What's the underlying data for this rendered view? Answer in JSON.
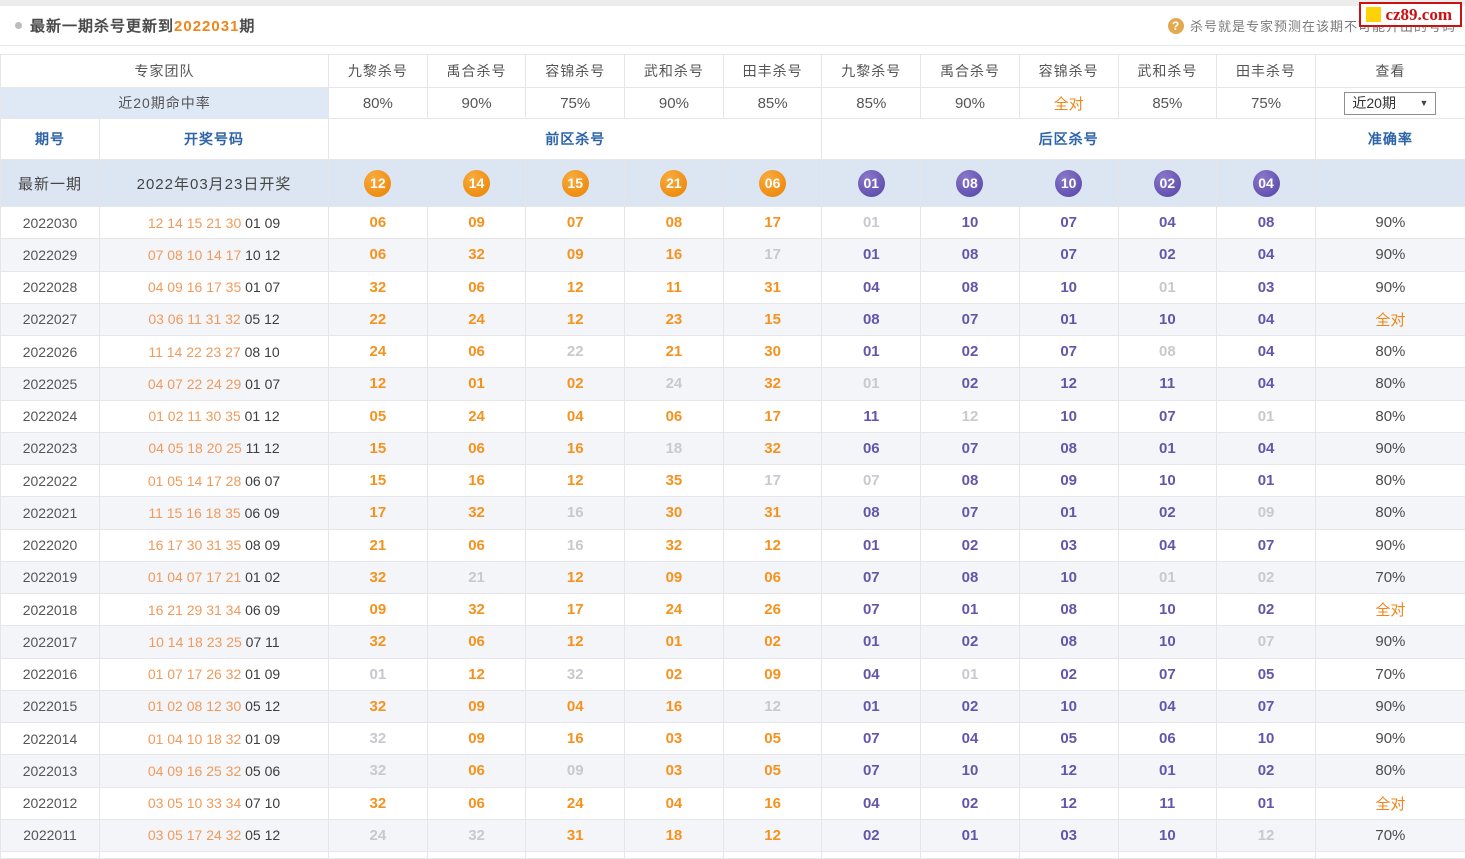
{
  "colors": {
    "accent_orange": "#f08519",
    "kill_hit_front": "#f5921e",
    "kill_hit_back": "#6156ab",
    "kill_miss": "#c9c9cd",
    "circle_front": "#ee8c10",
    "circle_back": "#6150ae",
    "header_blue": "#2e64a8",
    "latest_row_bg": "#dce6f2",
    "alt_row_bg": "#f4f5f9",
    "hitrate_cell_bg": "#dfe9f6",
    "draw_front": "#f19a5b",
    "logo_red": "#cc1111",
    "logo_gold": "#ffd207",
    "tip_icon": "#e3a94f"
  },
  "page": {
    "title_prefix": "最新一期杀号更新到",
    "title_period": "2022031",
    "title_suffix": "期",
    "tip": "杀号就是专家预测在该期不可能开出的号码",
    "logo_text": "cz89.com"
  },
  "header": {
    "expert_team_label": "专家团队",
    "expert_cols": [
      "九黎杀号",
      "禹合杀号",
      "容锦杀号",
      "武和杀号",
      "田丰杀号",
      "九黎杀号",
      "禹合杀号",
      "容锦杀号",
      "武和杀号",
      "田丰杀号"
    ],
    "view_label": "查看",
    "hit_rate_label": "近20期命中率",
    "hit_rates": [
      "80%",
      "90%",
      "75%",
      "90%",
      "85%",
      "85%",
      "90%",
      "全对",
      "85%",
      "75%"
    ],
    "dropdown_value": "近20期",
    "dropdown_arrow": "▼",
    "period_label": "期号",
    "draw_label": "开奖号码",
    "front_label": "前区杀号",
    "back_label": "后区杀号",
    "accuracy_label": "准确率"
  },
  "latest": {
    "period_label": "最新一期",
    "draw_text": "2022年03月23日开奖",
    "front": [
      "12",
      "14",
      "15",
      "21",
      "06"
    ],
    "back": [
      "01",
      "08",
      "10",
      "02",
      "04"
    ]
  },
  "rows": [
    {
      "period": "2022030",
      "front_draw": "12 14 15 21 30",
      "back_draw": "01 09",
      "front": [
        {
          "v": "06",
          "hit": true
        },
        {
          "v": "09",
          "hit": true
        },
        {
          "v": "07",
          "hit": true
        },
        {
          "v": "08",
          "hit": true
        },
        {
          "v": "17",
          "hit": true
        }
      ],
      "back": [
        {
          "v": "01",
          "hit": false
        },
        {
          "v": "10",
          "hit": true
        },
        {
          "v": "07",
          "hit": true
        },
        {
          "v": "04",
          "hit": true
        },
        {
          "v": "08",
          "hit": true
        }
      ],
      "rate": "90%"
    },
    {
      "period": "2022029",
      "front_draw": "07 08 10 14 17",
      "back_draw": "10 12",
      "front": [
        {
          "v": "06",
          "hit": true
        },
        {
          "v": "32",
          "hit": true
        },
        {
          "v": "09",
          "hit": true
        },
        {
          "v": "16",
          "hit": true
        },
        {
          "v": "17",
          "hit": false
        }
      ],
      "back": [
        {
          "v": "01",
          "hit": true
        },
        {
          "v": "08",
          "hit": true
        },
        {
          "v": "07",
          "hit": true
        },
        {
          "v": "02",
          "hit": true
        },
        {
          "v": "04",
          "hit": true
        }
      ],
      "rate": "90%"
    },
    {
      "period": "2022028",
      "front_draw": "04 09 16 17 35",
      "back_draw": "01 07",
      "front": [
        {
          "v": "32",
          "hit": true
        },
        {
          "v": "06",
          "hit": true
        },
        {
          "v": "12",
          "hit": true
        },
        {
          "v": "11",
          "hit": true
        },
        {
          "v": "31",
          "hit": true
        }
      ],
      "back": [
        {
          "v": "04",
          "hit": true
        },
        {
          "v": "08",
          "hit": true
        },
        {
          "v": "10",
          "hit": true
        },
        {
          "v": "01",
          "hit": false
        },
        {
          "v": "03",
          "hit": true
        }
      ],
      "rate": "90%"
    },
    {
      "period": "2022027",
      "front_draw": "03 06 11 31 32",
      "back_draw": "05 12",
      "front": [
        {
          "v": "22",
          "hit": true
        },
        {
          "v": "24",
          "hit": true
        },
        {
          "v": "12",
          "hit": true
        },
        {
          "v": "23",
          "hit": true
        },
        {
          "v": "15",
          "hit": true
        }
      ],
      "back": [
        {
          "v": "08",
          "hit": true
        },
        {
          "v": "07",
          "hit": true
        },
        {
          "v": "01",
          "hit": true
        },
        {
          "v": "10",
          "hit": true
        },
        {
          "v": "04",
          "hit": true
        }
      ],
      "rate": "全对"
    },
    {
      "period": "2022026",
      "front_draw": "11 14 22 23 27",
      "back_draw": "08 10",
      "front": [
        {
          "v": "24",
          "hit": true
        },
        {
          "v": "06",
          "hit": true
        },
        {
          "v": "22",
          "hit": false
        },
        {
          "v": "21",
          "hit": true
        },
        {
          "v": "30",
          "hit": true
        }
      ],
      "back": [
        {
          "v": "01",
          "hit": true
        },
        {
          "v": "02",
          "hit": true
        },
        {
          "v": "07",
          "hit": true
        },
        {
          "v": "08",
          "hit": false
        },
        {
          "v": "04",
          "hit": true
        }
      ],
      "rate": "80%"
    },
    {
      "period": "2022025",
      "front_draw": "04 07 22 24 29",
      "back_draw": "01 07",
      "front": [
        {
          "v": "12",
          "hit": true
        },
        {
          "v": "01",
          "hit": true
        },
        {
          "v": "02",
          "hit": true
        },
        {
          "v": "24",
          "hit": false
        },
        {
          "v": "32",
          "hit": true
        }
      ],
      "back": [
        {
          "v": "01",
          "hit": false
        },
        {
          "v": "02",
          "hit": true
        },
        {
          "v": "12",
          "hit": true
        },
        {
          "v": "11",
          "hit": true
        },
        {
          "v": "04",
          "hit": true
        }
      ],
      "rate": "80%"
    },
    {
      "period": "2022024",
      "front_draw": "01 02 11 30 35",
      "back_draw": "01 12",
      "front": [
        {
          "v": "05",
          "hit": true
        },
        {
          "v": "24",
          "hit": true
        },
        {
          "v": "04",
          "hit": true
        },
        {
          "v": "06",
          "hit": true
        },
        {
          "v": "17",
          "hit": true
        }
      ],
      "back": [
        {
          "v": "11",
          "hit": true
        },
        {
          "v": "12",
          "hit": false
        },
        {
          "v": "10",
          "hit": true
        },
        {
          "v": "07",
          "hit": true
        },
        {
          "v": "01",
          "hit": false
        }
      ],
      "rate": "80%"
    },
    {
      "period": "2022023",
      "front_draw": "04 05 18 20 25",
      "back_draw": "11 12",
      "front": [
        {
          "v": "15",
          "hit": true
        },
        {
          "v": "06",
          "hit": true
        },
        {
          "v": "16",
          "hit": true
        },
        {
          "v": "18",
          "hit": false
        },
        {
          "v": "32",
          "hit": true
        }
      ],
      "back": [
        {
          "v": "06",
          "hit": true
        },
        {
          "v": "07",
          "hit": true
        },
        {
          "v": "08",
          "hit": true
        },
        {
          "v": "01",
          "hit": true
        },
        {
          "v": "04",
          "hit": true
        }
      ],
      "rate": "90%"
    },
    {
      "period": "2022022",
      "front_draw": "01 05 14 17 28",
      "back_draw": "06 07",
      "front": [
        {
          "v": "15",
          "hit": true
        },
        {
          "v": "16",
          "hit": true
        },
        {
          "v": "12",
          "hit": true
        },
        {
          "v": "35",
          "hit": true
        },
        {
          "v": "17",
          "hit": false
        }
      ],
      "back": [
        {
          "v": "07",
          "hit": false
        },
        {
          "v": "08",
          "hit": true
        },
        {
          "v": "09",
          "hit": true
        },
        {
          "v": "10",
          "hit": true
        },
        {
          "v": "01",
          "hit": true
        }
      ],
      "rate": "80%"
    },
    {
      "period": "2022021",
      "front_draw": "11 15 16 18 35",
      "back_draw": "06 09",
      "front": [
        {
          "v": "17",
          "hit": true
        },
        {
          "v": "32",
          "hit": true
        },
        {
          "v": "16",
          "hit": false
        },
        {
          "v": "30",
          "hit": true
        },
        {
          "v": "31",
          "hit": true
        }
      ],
      "back": [
        {
          "v": "08",
          "hit": true
        },
        {
          "v": "07",
          "hit": true
        },
        {
          "v": "01",
          "hit": true
        },
        {
          "v": "02",
          "hit": true
        },
        {
          "v": "09",
          "hit": false
        }
      ],
      "rate": "80%"
    },
    {
      "period": "2022020",
      "front_draw": "16 17 30 31 35",
      "back_draw": "08 09",
      "front": [
        {
          "v": "21",
          "hit": true
        },
        {
          "v": "06",
          "hit": true
        },
        {
          "v": "16",
          "hit": false
        },
        {
          "v": "32",
          "hit": true
        },
        {
          "v": "12",
          "hit": true
        }
      ],
      "back": [
        {
          "v": "01",
          "hit": true
        },
        {
          "v": "02",
          "hit": true
        },
        {
          "v": "03",
          "hit": true
        },
        {
          "v": "04",
          "hit": true
        },
        {
          "v": "07",
          "hit": true
        }
      ],
      "rate": "90%"
    },
    {
      "period": "2022019",
      "front_draw": "01 04 07 17 21",
      "back_draw": "01 02",
      "front": [
        {
          "v": "32",
          "hit": true
        },
        {
          "v": "21",
          "hit": false
        },
        {
          "v": "12",
          "hit": true
        },
        {
          "v": "09",
          "hit": true
        },
        {
          "v": "06",
          "hit": true
        }
      ],
      "back": [
        {
          "v": "07",
          "hit": true
        },
        {
          "v": "08",
          "hit": true
        },
        {
          "v": "10",
          "hit": true
        },
        {
          "v": "01",
          "hit": false
        },
        {
          "v": "02",
          "hit": false
        }
      ],
      "rate": "70%"
    },
    {
      "period": "2022018",
      "front_draw": "16 21 29 31 34",
      "back_draw": "06 09",
      "front": [
        {
          "v": "09",
          "hit": true
        },
        {
          "v": "32",
          "hit": true
        },
        {
          "v": "17",
          "hit": true
        },
        {
          "v": "24",
          "hit": true
        },
        {
          "v": "26",
          "hit": true
        }
      ],
      "back": [
        {
          "v": "07",
          "hit": true
        },
        {
          "v": "01",
          "hit": true
        },
        {
          "v": "08",
          "hit": true
        },
        {
          "v": "10",
          "hit": true
        },
        {
          "v": "02",
          "hit": true
        }
      ],
      "rate": "全对"
    },
    {
      "period": "2022017",
      "front_draw": "10 14 18 23 25",
      "back_draw": "07 11",
      "front": [
        {
          "v": "32",
          "hit": true
        },
        {
          "v": "06",
          "hit": true
        },
        {
          "v": "12",
          "hit": true
        },
        {
          "v": "01",
          "hit": true
        },
        {
          "v": "02",
          "hit": true
        }
      ],
      "back": [
        {
          "v": "01",
          "hit": true
        },
        {
          "v": "02",
          "hit": true
        },
        {
          "v": "08",
          "hit": true
        },
        {
          "v": "10",
          "hit": true
        },
        {
          "v": "07",
          "hit": false
        }
      ],
      "rate": "90%"
    },
    {
      "period": "2022016",
      "front_draw": "01 07 17 26 32",
      "back_draw": "01 09",
      "front": [
        {
          "v": "01",
          "hit": false
        },
        {
          "v": "12",
          "hit": true
        },
        {
          "v": "32",
          "hit": false
        },
        {
          "v": "02",
          "hit": true
        },
        {
          "v": "09",
          "hit": true
        }
      ],
      "back": [
        {
          "v": "04",
          "hit": true
        },
        {
          "v": "01",
          "hit": false
        },
        {
          "v": "02",
          "hit": true
        },
        {
          "v": "07",
          "hit": true
        },
        {
          "v": "05",
          "hit": true
        }
      ],
      "rate": "70%"
    },
    {
      "period": "2022015",
      "front_draw": "01 02 08 12 30",
      "back_draw": "05 12",
      "front": [
        {
          "v": "32",
          "hit": true
        },
        {
          "v": "09",
          "hit": true
        },
        {
          "v": "04",
          "hit": true
        },
        {
          "v": "16",
          "hit": true
        },
        {
          "v": "12",
          "hit": false
        }
      ],
      "back": [
        {
          "v": "01",
          "hit": true
        },
        {
          "v": "02",
          "hit": true
        },
        {
          "v": "10",
          "hit": true
        },
        {
          "v": "04",
          "hit": true
        },
        {
          "v": "07",
          "hit": true
        }
      ],
      "rate": "90%"
    },
    {
      "period": "2022014",
      "front_draw": "01 04 10 18 32",
      "back_draw": "01 09",
      "front": [
        {
          "v": "32",
          "hit": false
        },
        {
          "v": "09",
          "hit": true
        },
        {
          "v": "16",
          "hit": true
        },
        {
          "v": "03",
          "hit": true
        },
        {
          "v": "05",
          "hit": true
        }
      ],
      "back": [
        {
          "v": "07",
          "hit": true
        },
        {
          "v": "04",
          "hit": true
        },
        {
          "v": "05",
          "hit": true
        },
        {
          "v": "06",
          "hit": true
        },
        {
          "v": "10",
          "hit": true
        }
      ],
      "rate": "90%"
    },
    {
      "period": "2022013",
      "front_draw": "04 09 16 25 32",
      "back_draw": "05 06",
      "front": [
        {
          "v": "32",
          "hit": false
        },
        {
          "v": "06",
          "hit": true
        },
        {
          "v": "09",
          "hit": false
        },
        {
          "v": "03",
          "hit": true
        },
        {
          "v": "05",
          "hit": true
        }
      ],
      "back": [
        {
          "v": "07",
          "hit": true
        },
        {
          "v": "10",
          "hit": true
        },
        {
          "v": "12",
          "hit": true
        },
        {
          "v": "01",
          "hit": true
        },
        {
          "v": "02",
          "hit": true
        }
      ],
      "rate": "80%"
    },
    {
      "period": "2022012",
      "front_draw": "03 05 10 33 34",
      "back_draw": "07 10",
      "front": [
        {
          "v": "32",
          "hit": true
        },
        {
          "v": "06",
          "hit": true
        },
        {
          "v": "24",
          "hit": true
        },
        {
          "v": "04",
          "hit": true
        },
        {
          "v": "16",
          "hit": true
        }
      ],
      "back": [
        {
          "v": "04",
          "hit": true
        },
        {
          "v": "02",
          "hit": true
        },
        {
          "v": "12",
          "hit": true
        },
        {
          "v": "11",
          "hit": true
        },
        {
          "v": "01",
          "hit": true
        }
      ],
      "rate": "全对"
    },
    {
      "period": "2022011",
      "front_draw": "03 05 17 24 32",
      "back_draw": "05 12",
      "front": [
        {
          "v": "24",
          "hit": false
        },
        {
          "v": "32",
          "hit": false
        },
        {
          "v": "31",
          "hit": true
        },
        {
          "v": "18",
          "hit": true
        },
        {
          "v": "12",
          "hit": true
        }
      ],
      "back": [
        {
          "v": "02",
          "hit": true
        },
        {
          "v": "01",
          "hit": true
        },
        {
          "v": "03",
          "hit": true
        },
        {
          "v": "10",
          "hit": true
        },
        {
          "v": "12",
          "hit": false
        }
      ],
      "rate": "70%"
    }
  ]
}
